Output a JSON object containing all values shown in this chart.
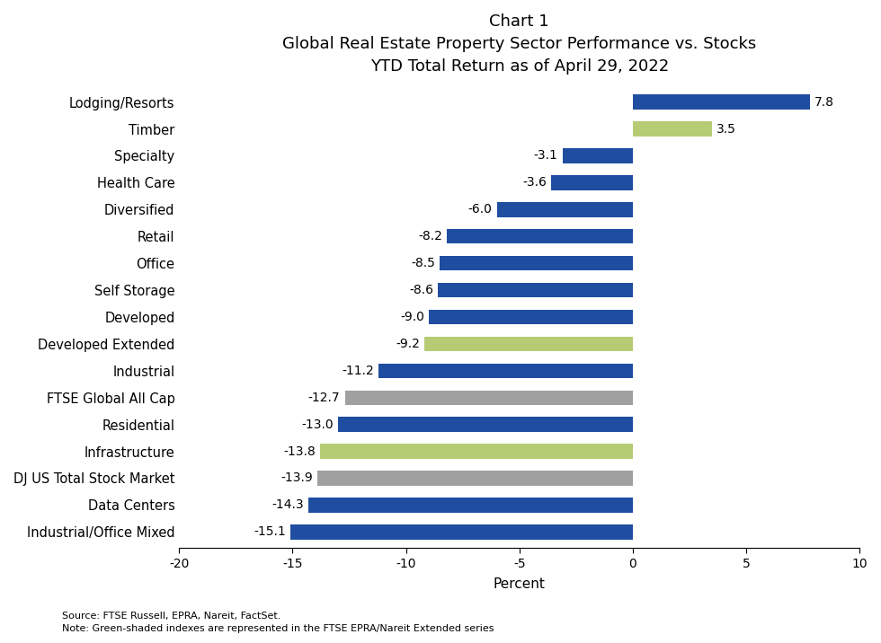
{
  "title_line1": "Chart 1",
  "title_line2": "Global Real Estate Property Sector Performance vs. Stocks",
  "title_line3": "YTD Total Return as of April 29, 2022",
  "xlabel": "Percent",
  "categories": [
    "Industrial/Office Mixed",
    "Data Centers",
    "DJ US Total Stock Market",
    "Infrastructure",
    "Residential",
    "FTSE Global All Cap",
    "Industrial",
    "Developed Extended",
    "Developed",
    "Self Storage",
    "Office",
    "Retail",
    "Diversified",
    "Health Care",
    "Specialty",
    "Timber",
    "Lodging/Resorts"
  ],
  "values": [
    -15.1,
    -14.3,
    -13.9,
    -13.8,
    -13.0,
    -12.7,
    -11.2,
    -9.2,
    -9.0,
    -8.6,
    -8.5,
    -8.2,
    -6.0,
    -3.6,
    -3.1,
    3.5,
    7.8
  ],
  "colors": [
    "#1f4ea1",
    "#1f4ea1",
    "#a0a0a0",
    "#b5cc74",
    "#1f4ea1",
    "#a0a0a0",
    "#1f4ea1",
    "#b5cc74",
    "#1f4ea1",
    "#1f4ea1",
    "#1f4ea1",
    "#1f4ea1",
    "#1f4ea1",
    "#1f4ea1",
    "#1f4ea1",
    "#b5cc74",
    "#1f4ea1"
  ],
  "xlim": [
    -20,
    10
  ],
  "xticks": [
    -20,
    -15,
    -10,
    -5,
    0,
    5,
    10
  ],
  "source_text": "Source: FTSE Russell, EPRA, Nareit, FactSet.",
  "note_text": "Note: Green-shaded indexes are represented in the FTSE EPRA/Nareit Extended series",
  "bar_height": 0.55,
  "label_fontsize": 10.5,
  "title_fontsize_1": 12,
  "title_fontsize_2": 13,
  "axis_fontsize": 10,
  "annotation_fontsize": 10,
  "background_color": "#ffffff"
}
